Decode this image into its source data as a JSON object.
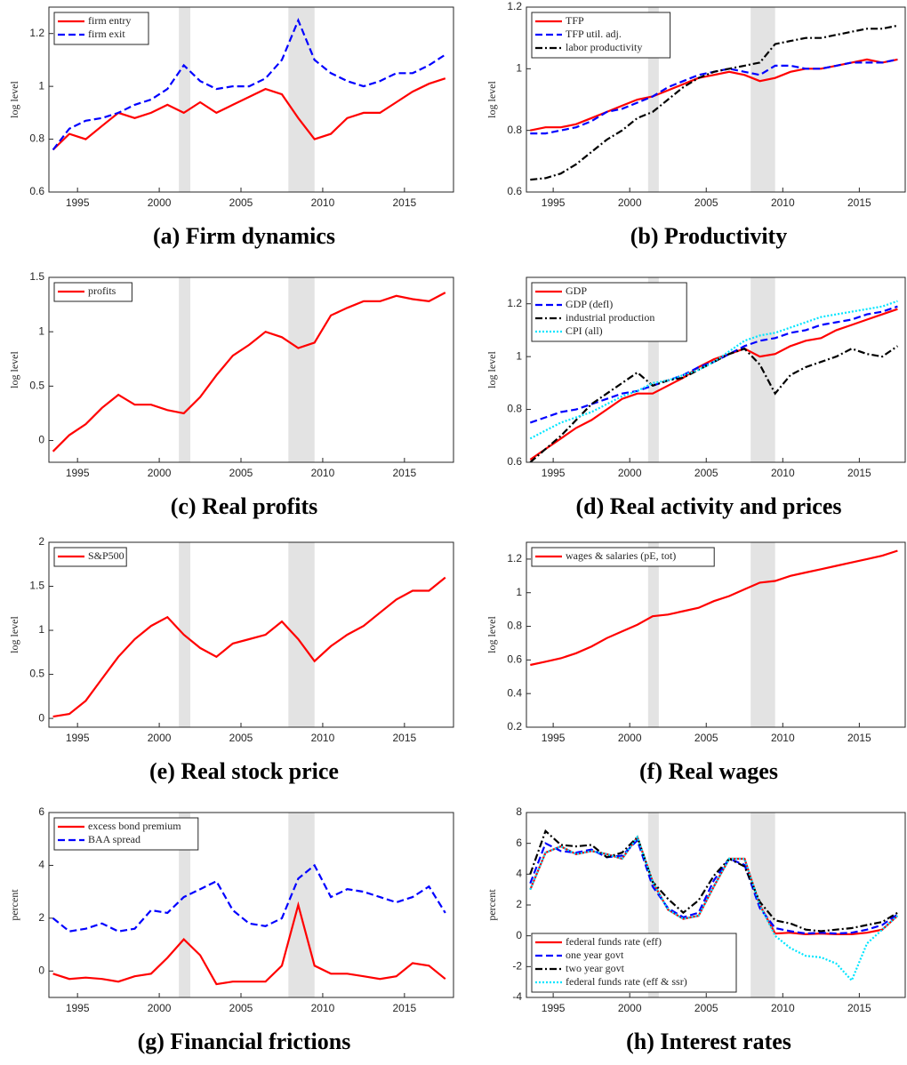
{
  "chart_data": [
    {
      "type": "line",
      "caption": "(a) Firm dynamics",
      "ylabel": "log level",
      "legend": "upper left",
      "x": [
        1993.5,
        1994.5,
        1995.5,
        1996.5,
        1997.5,
        1998.5,
        1999.5,
        2000.5,
        2001.5,
        2002.5,
        2003.5,
        2004.5,
        2005.5,
        2006.5,
        2007.5,
        2008.5,
        2009.5,
        2010.5,
        2011.5,
        2012.5,
        2013.5,
        2014.5,
        2015.5,
        2016.5,
        2017.5
      ],
      "xlim": [
        1993.25,
        2018
      ],
      "xticks": [
        1995,
        2000,
        2005,
        2010,
        2015
      ],
      "ylim": [
        0.6,
        1.3
      ],
      "yticks": [
        0.6,
        0.8,
        1,
        1.2
      ],
      "shaded_x": [
        [
          2001.2,
          2001.9
        ],
        [
          2007.9,
          2009.5
        ]
      ],
      "series": [
        {
          "name": "firm entry",
          "color": "#ff0000",
          "dash": "solid",
          "values": [
            0.76,
            0.82,
            0.8,
            0.85,
            0.9,
            0.88,
            0.9,
            0.93,
            0.9,
            0.94,
            0.9,
            0.93,
            0.96,
            0.99,
            0.97,
            0.88,
            0.8,
            0.82,
            0.88,
            0.9,
            0.9,
            0.94,
            0.98,
            1.01,
            1.03
          ]
        },
        {
          "name": "firm exit",
          "color": "#0000ff",
          "dash": "dashed",
          "values": [
            0.76,
            0.84,
            0.87,
            0.88,
            0.9,
            0.93,
            0.95,
            0.99,
            1.08,
            1.02,
            0.99,
            1.0,
            1.0,
            1.03,
            1.1,
            1.25,
            1.1,
            1.05,
            1.02,
            1.0,
            1.02,
            1.05,
            1.05,
            1.08,
            1.12
          ]
        }
      ]
    },
    {
      "type": "line",
      "caption": "(b) Productivity",
      "ylabel": "log level",
      "legend": "upper left",
      "x": [
        1993.5,
        1994.5,
        1995.5,
        1996.5,
        1997.5,
        1998.5,
        1999.5,
        2000.5,
        2001.5,
        2002.5,
        2003.5,
        2004.5,
        2005.5,
        2006.5,
        2007.5,
        2008.5,
        2009.5,
        2010.5,
        2011.5,
        2012.5,
        2013.5,
        2014.5,
        2015.5,
        2016.5,
        2017.5
      ],
      "xlim": [
        1993.25,
        2018
      ],
      "xticks": [
        1995,
        2000,
        2005,
        2010,
        2015
      ],
      "ylim": [
        0.6,
        1.2
      ],
      "yticks": [
        0.6,
        0.8,
        1,
        1.2
      ],
      "shaded_x": [
        [
          2001.2,
          2001.9
        ],
        [
          2007.9,
          2009.5
        ]
      ],
      "series": [
        {
          "name": "TFP",
          "color": "#ff0000",
          "dash": "solid",
          "values": [
            0.8,
            0.81,
            0.81,
            0.82,
            0.84,
            0.86,
            0.88,
            0.9,
            0.91,
            0.93,
            0.95,
            0.97,
            0.98,
            0.99,
            0.98,
            0.96,
            0.97,
            0.99,
            1.0,
            1.0,
            1.01,
            1.02,
            1.03,
            1.02,
            1.03
          ]
        },
        {
          "name": "TFP util. adj.",
          "color": "#0000ff",
          "dash": "dashed",
          "values": [
            0.79,
            0.79,
            0.8,
            0.81,
            0.83,
            0.86,
            0.87,
            0.89,
            0.91,
            0.94,
            0.96,
            0.98,
            0.99,
            1.0,
            0.99,
            0.98,
            1.01,
            1.01,
            1.0,
            1.0,
            1.01,
            1.02,
            1.02,
            1.02,
            1.03
          ]
        },
        {
          "name": "labor productivity",
          "color": "#000000",
          "dash": "dashdot",
          "values": [
            0.64,
            0.645,
            0.66,
            0.69,
            0.73,
            0.77,
            0.8,
            0.84,
            0.86,
            0.9,
            0.94,
            0.97,
            0.99,
            1.0,
            1.01,
            1.02,
            1.08,
            1.09,
            1.1,
            1.1,
            1.11,
            1.12,
            1.13,
            1.13,
            1.14
          ]
        }
      ]
    },
    {
      "type": "line",
      "caption": "(c) Real profits",
      "ylabel": "log level",
      "legend": "upper left",
      "x": [
        1993.5,
        1994.5,
        1995.5,
        1996.5,
        1997.5,
        1998.5,
        1999.5,
        2000.5,
        2001.5,
        2002.5,
        2003.5,
        2004.5,
        2005.5,
        2006.5,
        2007.5,
        2008.5,
        2009.5,
        2010.5,
        2011.5,
        2012.5,
        2013.5,
        2014.5,
        2015.5,
        2016.5,
        2017.5
      ],
      "xlim": [
        1993.25,
        2018
      ],
      "xticks": [
        1995,
        2000,
        2005,
        2010,
        2015
      ],
      "ylim": [
        -0.2,
        1.5
      ],
      "yticks": [
        0,
        0.5,
        1,
        1.5
      ],
      "shaded_x": [
        [
          2001.2,
          2001.9
        ],
        [
          2007.9,
          2009.5
        ]
      ],
      "series": [
        {
          "name": "profits",
          "color": "#ff0000",
          "dash": "solid",
          "values": [
            -0.1,
            0.05,
            0.15,
            0.3,
            0.42,
            0.33,
            0.33,
            0.28,
            0.25,
            0.4,
            0.6,
            0.78,
            0.88,
            1.0,
            0.95,
            0.85,
            0.9,
            1.15,
            1.22,
            1.28,
            1.28,
            1.33,
            1.3,
            1.28,
            1.36
          ]
        }
      ]
    },
    {
      "type": "line",
      "caption": "(d) Real activity and prices",
      "ylabel": "log level",
      "legend": "upper left",
      "x": [
        1993.5,
        1994.5,
        1995.5,
        1996.5,
        1997.5,
        1998.5,
        1999.5,
        2000.5,
        2001.5,
        2002.5,
        2003.5,
        2004.5,
        2005.5,
        2006.5,
        2007.5,
        2008.5,
        2009.5,
        2010.5,
        2011.5,
        2012.5,
        2013.5,
        2014.5,
        2015.5,
        2016.5,
        2017.5
      ],
      "xlim": [
        1993.25,
        2018
      ],
      "xticks": [
        1995,
        2000,
        2005,
        2010,
        2015
      ],
      "ylim": [
        0.6,
        1.3
      ],
      "yticks": [
        0.6,
        0.8,
        1,
        1.2
      ],
      "shaded_x": [
        [
          2001.2,
          2001.9
        ],
        [
          2007.9,
          2009.5
        ]
      ],
      "series": [
        {
          "name": "GDP",
          "color": "#ff0000",
          "dash": "solid",
          "values": [
            0.61,
            0.65,
            0.69,
            0.73,
            0.76,
            0.8,
            0.84,
            0.86,
            0.86,
            0.89,
            0.92,
            0.96,
            0.99,
            1.01,
            1.03,
            1.0,
            1.01,
            1.04,
            1.06,
            1.07,
            1.1,
            1.12,
            1.14,
            1.16,
            1.18
          ]
        },
        {
          "name": "GDP (defl)",
          "color": "#0000ff",
          "dash": "dashed",
          "values": [
            0.75,
            0.77,
            0.79,
            0.8,
            0.82,
            0.84,
            0.86,
            0.87,
            0.89,
            0.91,
            0.93,
            0.96,
            0.98,
            1.01,
            1.04,
            1.06,
            1.07,
            1.09,
            1.1,
            1.12,
            1.13,
            1.14,
            1.16,
            1.17,
            1.19
          ]
        },
        {
          "name": "industrial production",
          "color": "#000000",
          "dash": "dashdot",
          "values": [
            0.6,
            0.65,
            0.7,
            0.76,
            0.82,
            0.86,
            0.9,
            0.94,
            0.89,
            0.91,
            0.92,
            0.95,
            0.98,
            1.01,
            1.03,
            0.97,
            0.86,
            0.93,
            0.96,
            0.98,
            1.0,
            1.03,
            1.01,
            1.0,
            1.04
          ]
        },
        {
          "name": "CPI (all)",
          "color": "#00e5ff",
          "dash": "dotted",
          "values": [
            0.69,
            0.72,
            0.75,
            0.77,
            0.79,
            0.82,
            0.85,
            0.87,
            0.9,
            0.91,
            0.93,
            0.95,
            0.98,
            1.02,
            1.06,
            1.08,
            1.09,
            1.11,
            1.13,
            1.15,
            1.16,
            1.17,
            1.18,
            1.19,
            1.21
          ]
        }
      ]
    },
    {
      "type": "line",
      "caption": "(e) Real stock price",
      "ylabel": "log level",
      "legend": "upper left",
      "x": [
        1993.5,
        1994.5,
        1995.5,
        1996.5,
        1997.5,
        1998.5,
        1999.5,
        2000.5,
        2001.5,
        2002.5,
        2003.5,
        2004.5,
        2005.5,
        2006.5,
        2007.5,
        2008.5,
        2009.5,
        2010.5,
        2011.5,
        2012.5,
        2013.5,
        2014.5,
        2015.5,
        2016.5,
        2017.5
      ],
      "xlim": [
        1993.25,
        2018
      ],
      "xticks": [
        1995,
        2000,
        2005,
        2010,
        2015
      ],
      "ylim": [
        -0.1,
        2
      ],
      "yticks": [
        0,
        0.5,
        1,
        1.5,
        2
      ],
      "shaded_x": [
        [
          2001.2,
          2001.9
        ],
        [
          2007.9,
          2009.5
        ]
      ],
      "series": [
        {
          "name": "S&P500",
          "color": "#ff0000",
          "dash": "solid",
          "values": [
            0.02,
            0.05,
            0.2,
            0.45,
            0.7,
            0.9,
            1.05,
            1.15,
            0.95,
            0.8,
            0.7,
            0.85,
            0.9,
            0.95,
            1.1,
            0.9,
            0.65,
            0.82,
            0.95,
            1.05,
            1.2,
            1.35,
            1.45,
            1.45,
            1.6
          ]
        }
      ]
    },
    {
      "type": "line",
      "caption": "(f) Real wages",
      "ylabel": "log level",
      "legend": "upper left",
      "x": [
        1993.5,
        1994.5,
        1995.5,
        1996.5,
        1997.5,
        1998.5,
        1999.5,
        2000.5,
        2001.5,
        2002.5,
        2003.5,
        2004.5,
        2005.5,
        2006.5,
        2007.5,
        2008.5,
        2009.5,
        2010.5,
        2011.5,
        2012.5,
        2013.5,
        2014.5,
        2015.5,
        2016.5,
        2017.5
      ],
      "xlim": [
        1993.25,
        2018
      ],
      "xticks": [
        1995,
        2000,
        2005,
        2010,
        2015
      ],
      "ylim": [
        0.2,
        1.3
      ],
      "yticks": [
        0.2,
        0.4,
        0.6,
        0.8,
        1,
        1.2
      ],
      "shaded_x": [
        [
          2001.2,
          2001.9
        ],
        [
          2007.9,
          2009.5
        ]
      ],
      "series": [
        {
          "name": "wages & salaries (pE, tot)",
          "color": "#ff0000",
          "dash": "solid",
          "values": [
            0.57,
            0.59,
            0.61,
            0.64,
            0.68,
            0.73,
            0.77,
            0.81,
            0.86,
            0.87,
            0.89,
            0.91,
            0.95,
            0.98,
            1.02,
            1.06,
            1.07,
            1.1,
            1.12,
            1.14,
            1.16,
            1.18,
            1.2,
            1.22,
            1.25
          ]
        }
      ]
    },
    {
      "type": "line",
      "caption": "(g) Financial frictions",
      "ylabel": "percent",
      "legend": "upper left",
      "x": [
        1993.5,
        1994.5,
        1995.5,
        1996.5,
        1997.5,
        1998.5,
        1999.5,
        2000.5,
        2001.5,
        2002.5,
        2003.5,
        2004.5,
        2005.5,
        2006.5,
        2007.5,
        2008.5,
        2009.5,
        2010.5,
        2011.5,
        2012.5,
        2013.5,
        2014.5,
        2015.5,
        2016.5,
        2017.5
      ],
      "xlim": [
        1993.25,
        2018
      ],
      "xticks": [
        1995,
        2000,
        2005,
        2010,
        2015
      ],
      "ylim": [
        -1,
        6
      ],
      "yticks": [
        0,
        2,
        4,
        6
      ],
      "shaded_x": [
        [
          2001.2,
          2001.9
        ],
        [
          2007.9,
          2009.5
        ]
      ],
      "series": [
        {
          "name": "excess bond premium",
          "color": "#ff0000",
          "dash": "solid",
          "values": [
            -0.1,
            -0.3,
            -0.25,
            -0.3,
            -0.4,
            -0.2,
            -0.1,
            0.5,
            1.2,
            0.6,
            -0.5,
            -0.4,
            -0.4,
            -0.4,
            0.2,
            2.5,
            0.2,
            -0.1,
            -0.1,
            -0.2,
            -0.3,
            -0.2,
            0.3,
            0.2,
            -0.3
          ]
        },
        {
          "name": "BAA spread",
          "color": "#0000ff",
          "dash": "dashed",
          "values": [
            2.0,
            1.5,
            1.6,
            1.8,
            1.5,
            1.6,
            2.3,
            2.2,
            2.8,
            3.1,
            3.4,
            2.3,
            1.8,
            1.7,
            2.0,
            3.5,
            4.0,
            2.8,
            3.1,
            3.0,
            2.8,
            2.6,
            2.8,
            3.2,
            2.2
          ]
        }
      ]
    },
    {
      "type": "line",
      "caption": "(h) Interest rates",
      "ylabel": "percent",
      "legend": "lower left",
      "x": [
        1993.5,
        1994.5,
        1995.5,
        1996.5,
        1997.5,
        1998.5,
        1999.5,
        2000.5,
        2001.5,
        2002.5,
        2003.5,
        2004.5,
        2005.5,
        2006.5,
        2007.5,
        2008.5,
        2009.5,
        2010.5,
        2011.5,
        2012.5,
        2013.5,
        2014.5,
        2015.5,
        2016.5,
        2017.5
      ],
      "xlim": [
        1993.25,
        2018
      ],
      "xticks": [
        1995,
        2000,
        2005,
        2010,
        2015
      ],
      "ylim": [
        -4,
        8
      ],
      "yticks": [
        -4,
        -2,
        0,
        2,
        4,
        6,
        8
      ],
      "shaded_x": [
        [
          2001.2,
          2001.9
        ],
        [
          2007.9,
          2009.5
        ]
      ],
      "series": [
        {
          "name": "federal funds rate (eff)",
          "color": "#ff0000",
          "dash": "solid",
          "values": [
            3.0,
            5.4,
            5.8,
            5.3,
            5.5,
            5.3,
            5.0,
            6.4,
            3.5,
            1.7,
            1.1,
            1.3,
            3.2,
            5.0,
            5.0,
            2.0,
            0.15,
            0.2,
            0.1,
            0.15,
            0.1,
            0.1,
            0.2,
            0.4,
            1.3
          ]
        },
        {
          "name": "one year govt",
          "color": "#0000ff",
          "dash": "dashed",
          "values": [
            3.4,
            6.0,
            5.5,
            5.4,
            5.6,
            5.1,
            5.2,
            6.2,
            3.2,
            1.8,
            1.2,
            1.5,
            3.6,
            5.0,
            4.6,
            1.8,
            0.5,
            0.3,
            0.15,
            0.2,
            0.15,
            0.2,
            0.4,
            0.7,
            1.4
          ]
        },
        {
          "name": "two year govt",
          "color": "#000000",
          "dash": "dashdot",
          "values": [
            4.0,
            6.8,
            5.9,
            5.8,
            5.9,
            5.1,
            5.4,
            6.4,
            3.5,
            2.4,
            1.5,
            2.3,
            3.9,
            5.0,
            4.5,
            2.2,
            1.0,
            0.8,
            0.4,
            0.3,
            0.4,
            0.5,
            0.7,
            0.9,
            1.5
          ]
        },
        {
          "name": "federal funds rate (eff & ssr)",
          "color": "#00e5ff",
          "dash": "dotted",
          "values": [
            3.0,
            5.4,
            5.8,
            5.3,
            5.5,
            5.3,
            5.0,
            6.4,
            3.5,
            1.7,
            1.1,
            1.3,
            3.2,
            5.0,
            5.0,
            2.0,
            0.0,
            -0.8,
            -1.3,
            -1.4,
            -1.8,
            -2.9,
            -0.5,
            0.4,
            1.3
          ]
        }
      ]
    }
  ]
}
